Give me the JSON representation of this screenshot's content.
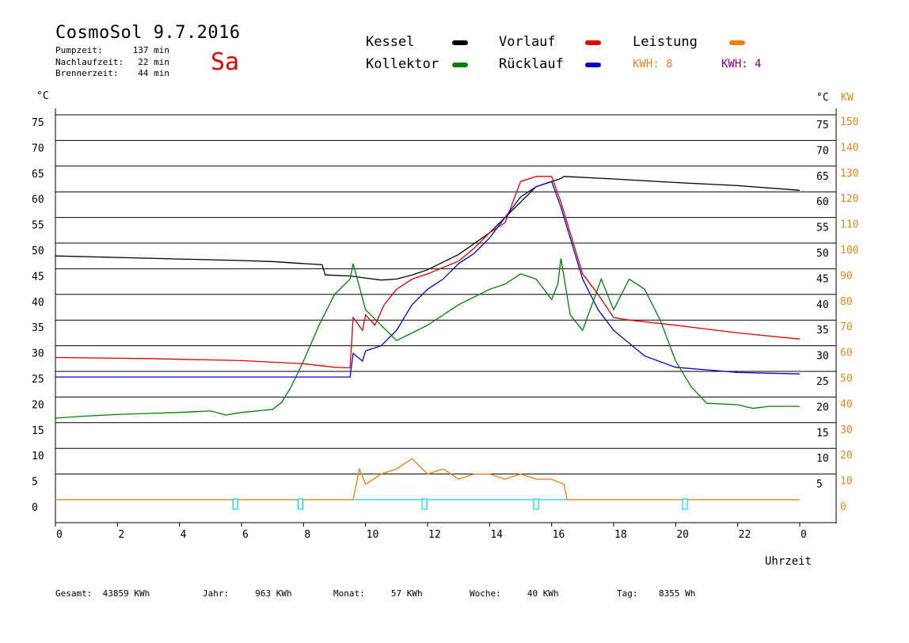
{
  "header": {
    "title": "CosmoSol 9.7.2016",
    "weekday": "Sa",
    "stats": [
      {
        "label": "Pumpzeit:",
        "value": "137 min"
      },
      {
        "label": "Nachlaufzeit:",
        "value": "22 min"
      },
      {
        "label": "Brennerzeit:",
        "value": "44 min"
      }
    ]
  },
  "legend": {
    "kessel": {
      "label": "Kessel",
      "color": "#000000"
    },
    "vorlauf": {
      "label": "Vorlauf",
      "color": "#e00000"
    },
    "leistung": {
      "label": "Leistung",
      "color": "#f08010"
    },
    "kollektor": {
      "label": "Kollektor",
      "color": "#008000"
    },
    "ruecklauf": {
      "label": "Rücklauf",
      "color": "#0000d0"
    },
    "kwh1": {
      "label": "KWH: 8",
      "color": "#e08a1e"
    },
    "kwh2": {
      "label": "KWH: 4",
      "color": "#800080"
    }
  },
  "axes": {
    "left_unit": "°C",
    "right_unit_c": "°C",
    "right_unit_kw": "KW",
    "x_title": "Uhrzeit"
  },
  "footer": [
    {
      "label": "Gesamt:",
      "value": "43859 KWh"
    },
    {
      "label": "Jahr:",
      "value": "963 KWh"
    },
    {
      "label": "Monat:",
      "value": "57 KWh"
    },
    {
      "label": "Woche:",
      "value": "40 KWh"
    },
    {
      "label": "Tag:",
      "value": "8355 Wh"
    }
  ],
  "chart_data": {
    "type": "line",
    "xlabel": "Uhrzeit",
    "ylabel": "°C",
    "y2label": "KW",
    "xlim": [
      0,
      24
    ],
    "ylim": [
      0,
      75
    ],
    "y2lim": [
      0,
      150
    ],
    "grid": true,
    "x_ticks": [
      "0",
      "2",
      "4",
      "6",
      "8",
      "10",
      "12",
      "14",
      "16",
      "18",
      "20",
      "22",
      "0"
    ],
    "y_ticks": [
      0,
      5,
      10,
      15,
      20,
      25,
      30,
      35,
      40,
      45,
      50,
      55,
      60,
      65,
      70,
      75
    ],
    "y_right_c_ticks": [
      "5",
      "10",
      "15",
      "20",
      "25",
      "30",
      "35",
      "40",
      "45",
      "50",
      "55",
      "60",
      "65",
      "70",
      "75"
    ],
    "y2_ticks": [
      0,
      10,
      20,
      30,
      40,
      50,
      60,
      70,
      80,
      90,
      100,
      110,
      120,
      130,
      140,
      150
    ],
    "series": [
      {
        "name": "Kessel",
        "color": "#000000",
        "x": [
          0,
          2,
          4,
          6,
          7,
          8,
          8.6,
          8.7,
          9.5,
          10,
          10.5,
          11,
          11.5,
          12,
          13,
          14,
          15,
          15.5,
          16,
          16.3,
          16.4,
          18,
          20,
          22,
          24
        ],
        "y": [
          47.5,
          47.2,
          46.9,
          46.6,
          46.4,
          46,
          45.8,
          43.8,
          43.6,
          43.2,
          42.8,
          43,
          43.8,
          44.8,
          47.8,
          52,
          58,
          61,
          62,
          62.6,
          63,
          62.5,
          61.8,
          61.2,
          60.3
        ]
      },
      {
        "name": "Vorlauf",
        "color": "#e00000",
        "x": [
          0,
          3,
          6,
          8,
          9,
          9.5,
          9.6,
          9.9,
          10,
          10.3,
          10.6,
          11,
          11.5,
          12,
          13,
          13.5,
          14,
          14.5,
          15,
          15.5,
          16,
          16.3,
          17,
          17.5,
          18,
          18.5,
          20,
          22,
          24
        ],
        "y": [
          27.7,
          27.5,
          27.1,
          26.5,
          25.8,
          25.7,
          35.5,
          33,
          36,
          34,
          38,
          41,
          43,
          44,
          46.5,
          49,
          52,
          54,
          62,
          63,
          63,
          58,
          44,
          40,
          35.5,
          35,
          34,
          32.5,
          31.3
        ]
      },
      {
        "name": "Rücklauf",
        "color": "#0000d0",
        "x": [
          0,
          3,
          6,
          8,
          9,
          9.5,
          9.6,
          9.9,
          10,
          10.5,
          11,
          11.5,
          12,
          12.5,
          13,
          13.5,
          14,
          14.5,
          15,
          15.5,
          16,
          16.3,
          17,
          17.5,
          18,
          19,
          20,
          22,
          24
        ],
        "y": [
          23.9,
          23.9,
          23.9,
          23.9,
          23.9,
          23.9,
          28.5,
          27,
          29,
          30,
          33,
          38,
          41,
          43,
          46,
          48,
          51,
          55,
          59,
          61,
          62,
          57,
          43,
          37,
          33,
          28,
          25.8,
          24.8,
          24.5
        ]
      },
      {
        "name": "Kollektor",
        "color": "#008000",
        "x": [
          0,
          1,
          2,
          3,
          4,
          5,
          5.5,
          6,
          7,
          7.3,
          7.6,
          8,
          8.5,
          9,
          9.5,
          9.6,
          10,
          10.5,
          11,
          12,
          13,
          14,
          14.5,
          15,
          15.5,
          16,
          16.2,
          16.3,
          16.6,
          17,
          17.3,
          17.6,
          18,
          18.5,
          19,
          19.5,
          20,
          20.5,
          21,
          22,
          22.5,
          23,
          24
        ],
        "y": [
          15.9,
          16.3,
          16.6,
          16.8,
          17,
          17.3,
          16.5,
          17,
          17.6,
          19,
          22,
          27,
          34,
          40,
          43,
          46,
          37,
          34,
          31,
          34,
          38,
          41,
          42,
          44,
          43,
          39,
          42,
          47,
          36,
          33,
          38,
          43,
          37,
          43,
          41,
          35,
          27,
          22,
          18.8,
          18.5,
          17.8,
          18.2,
          18.2
        ]
      },
      {
        "name": "Leistung",
        "color": "#f08010",
        "x": [
          0,
          9.6,
          9.8,
          10,
          10.5,
          11,
          11.5,
          12,
          12.5,
          13,
          13.5,
          14,
          14.5,
          15,
          15.5,
          16,
          16.4,
          16.5,
          24
        ],
        "y": [
          0,
          0,
          6,
          3,
          5,
          6,
          8,
          5,
          6,
          4,
          5,
          5,
          4,
          5,
          4,
          4,
          3,
          0,
          0
        ]
      }
    ]
  }
}
